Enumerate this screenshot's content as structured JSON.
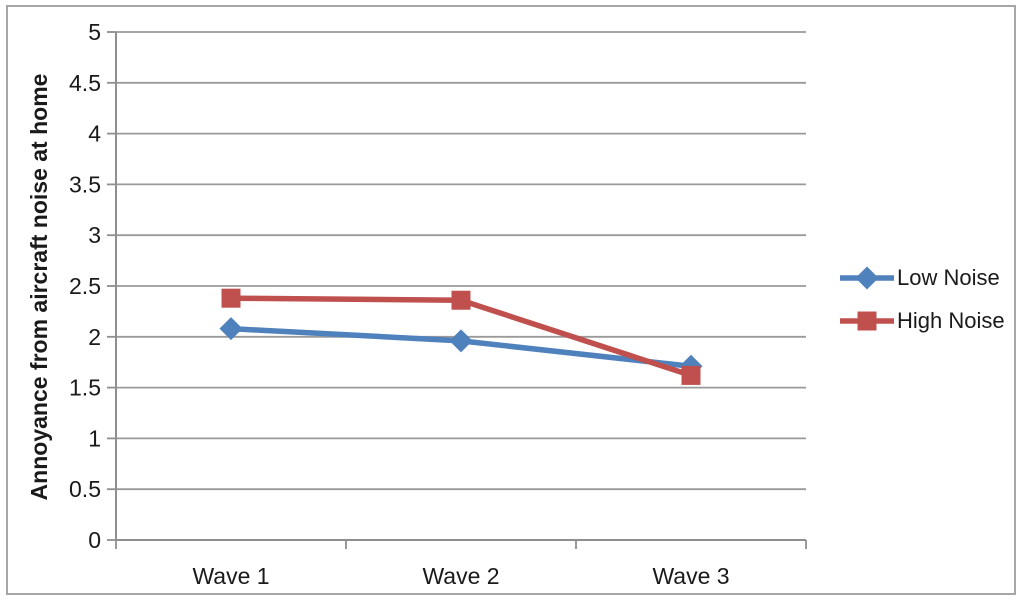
{
  "chart_data": {
    "type": "line",
    "title": "",
    "xlabel": "",
    "ylabel": "Annoyance from aircraft noise at home",
    "categories": [
      "Wave 1",
      "Wave 2",
      "Wave 3"
    ],
    "series": [
      {
        "name": "Low Noise",
        "values": [
          2.08,
          1.96,
          1.71
        ],
        "color": "#4f81bd",
        "marker": "diamond"
      },
      {
        "name": "High Noise",
        "values": [
          2.38,
          2.36,
          1.62
        ],
        "color": "#c0504d",
        "marker": "square"
      }
    ],
    "ylim": [
      0,
      5
    ],
    "ytick_step": 0.5,
    "ytick_labels": [
      "0",
      "0.5",
      "1",
      "1.5",
      "2",
      "2.5",
      "3",
      "3.5",
      "4",
      "4.5",
      "5"
    ],
    "grid": "horizontal",
    "legend_position": "right",
    "colors": {
      "background": "#ffffff",
      "frame_border": "#a6a6a6",
      "gridline": "#9a9a9a",
      "axis": "#8f8f8f",
      "text": "#1a1a1a"
    }
  }
}
